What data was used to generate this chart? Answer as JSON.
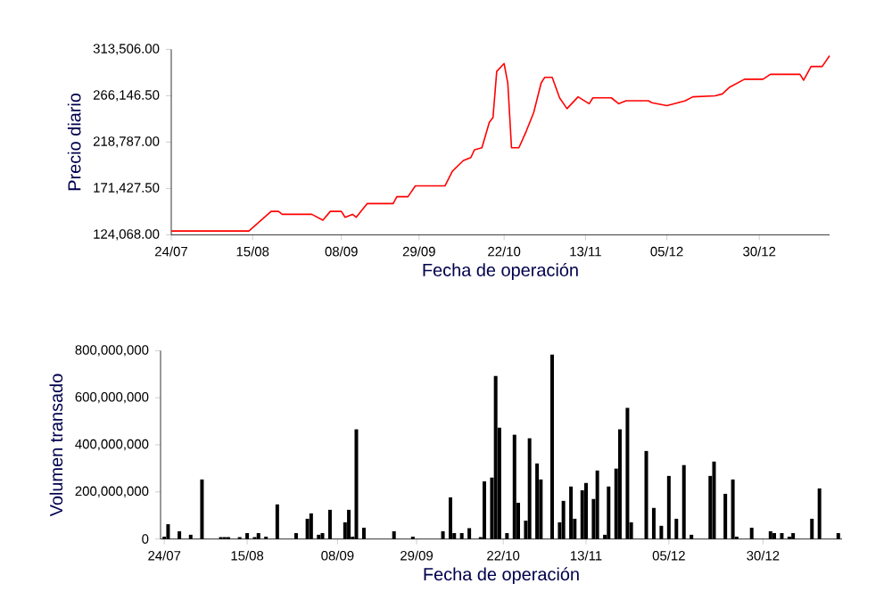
{
  "chart_data": [
    {
      "type": "line",
      "xlabel": "Fecha de operación",
      "ylabel": "Precio diario",
      "color": "#ff0000",
      "x": [
        "2007-07-24",
        "2007-08-14",
        "2007-08-20",
        "2007-08-22",
        "2007-08-23",
        "2007-08-31",
        "2007-09-03",
        "2007-09-05",
        "2007-09-08",
        "2007-09-09",
        "2007-09-11",
        "2007-09-12",
        "2007-09-15",
        "2007-09-22",
        "2007-09-23",
        "2007-09-26",
        "2007-09-28",
        "2007-10-06",
        "2007-10-08",
        "2007-10-11",
        "2007-10-13",
        "2007-10-14",
        "2007-10-16",
        "2007-10-18",
        "2007-10-19",
        "2007-10-20",
        "2007-10-22",
        "2007-10-23",
        "2007-10-24",
        "2007-10-26",
        "2007-10-28",
        "2007-10-30",
        "2007-11-01",
        "2007-11-02",
        "2007-11-04",
        "2007-11-06",
        "2007-11-08",
        "2007-11-11",
        "2007-11-14",
        "2007-11-15",
        "2007-11-20",
        "2007-11-22",
        "2007-11-24",
        "2007-11-30",
        "2007-12-01",
        "2007-12-05",
        "2007-12-08",
        "2007-12-10",
        "2007-12-12",
        "2007-12-18",
        "2007-12-20",
        "2007-12-22",
        "2007-12-26",
        "2007-12-31",
        "2008-01-02",
        "2008-01-10",
        "2008-01-11",
        "2008-01-13",
        "2008-01-16",
        "2008-01-18"
      ],
      "values": [
        128000,
        128000,
        148000,
        148000,
        145000,
        145000,
        139000,
        148000,
        148000,
        142000,
        145000,
        142000,
        156000,
        156000,
        163000,
        163000,
        174000,
        174000,
        189000,
        200000,
        203000,
        211000,
        213000,
        239000,
        244000,
        291000,
        299000,
        279000,
        213000,
        213000,
        230000,
        249000,
        279000,
        285000,
        285000,
        264000,
        253000,
        265000,
        258000,
        264000,
        264000,
        258000,
        261000,
        261000,
        259000,
        256000,
        259000,
        261000,
        265000,
        266000,
        268000,
        275000,
        283000,
        283000,
        288000,
        288000,
        282000,
        296000,
        296000,
        307000
      ],
      "xlim": [
        "2007-07-24",
        "2008-01-18"
      ],
      "xticks": [
        {
          "value": "2007-07-24",
          "label": "24/07"
        },
        {
          "value": "2007-08-15",
          "label": "15/08"
        },
        {
          "value": "2007-09-08",
          "label": "08/09"
        },
        {
          "value": "2007-09-29",
          "label": "29/09"
        },
        {
          "value": "2007-10-22",
          "label": "22/10"
        },
        {
          "value": "2007-11-13",
          "label": "13/11"
        },
        {
          "value": "2007-12-05",
          "label": "05/12"
        },
        {
          "value": "2007-12-30",
          "label": "30/12"
        }
      ],
      "ylim": [
        124068,
        313506
      ],
      "yticks": [
        {
          "value": 124068,
          "label": "124,068.00"
        },
        {
          "value": 171427.5,
          "label": "171,427.50"
        },
        {
          "value": 218787,
          "label": "218,787.00"
        },
        {
          "value": 266146.5,
          "label": "266,146.50"
        },
        {
          "value": 313506,
          "label": "313,506.00"
        }
      ]
    },
    {
      "type": "bar",
      "xlabel": "Fecha de operación",
      "ylabel": "Volumen transado",
      "color": "#000000",
      "x": [
        "2007-07-24",
        "2007-07-25",
        "2007-07-28",
        "2007-07-31",
        "2007-08-03",
        "2007-08-08",
        "2007-08-09",
        "2007-08-10",
        "2007-08-13",
        "2007-08-15",
        "2007-08-17",
        "2007-08-18",
        "2007-08-20",
        "2007-08-23",
        "2007-08-28",
        "2007-08-31",
        "2007-09-01",
        "2007-09-03",
        "2007-09-04",
        "2007-09-06",
        "2007-09-10",
        "2007-09-11",
        "2007-09-12",
        "2007-09-13",
        "2007-09-15",
        "2007-09-23",
        "2007-09-28",
        "2007-10-06",
        "2007-10-08",
        "2007-10-09",
        "2007-10-11",
        "2007-10-13",
        "2007-10-16",
        "2007-10-17",
        "2007-10-19",
        "2007-10-20",
        "2007-10-21",
        "2007-10-23",
        "2007-10-25",
        "2007-10-26",
        "2007-10-28",
        "2007-10-29",
        "2007-10-31",
        "2007-11-01",
        "2007-11-04",
        "2007-11-06",
        "2007-11-07",
        "2007-11-09",
        "2007-11-10",
        "2007-11-12",
        "2007-11-13",
        "2007-11-15",
        "2007-11-16",
        "2007-11-18",
        "2007-11-19",
        "2007-11-21",
        "2007-11-22",
        "2007-11-24",
        "2007-11-25",
        "2007-11-29",
        "2007-12-01",
        "2007-12-03",
        "2007-12-05",
        "2007-12-07",
        "2007-12-09",
        "2007-12-11",
        "2007-12-16",
        "2007-12-17",
        "2007-12-20",
        "2007-12-22",
        "2007-12-23",
        "2007-12-27",
        "2008-01-01",
        "2008-01-02",
        "2008-01-04",
        "2008-01-06",
        "2008-01-07",
        "2008-01-12",
        "2008-01-14",
        "2008-01-19"
      ],
      "values": [
        10000000,
        63000000,
        33000000,
        18000000,
        253000000,
        8000000,
        8000000,
        8000000,
        8000000,
        25000000,
        8000000,
        25000000,
        10000000,
        147000000,
        25000000,
        86000000,
        109000000,
        18000000,
        25000000,
        124000000,
        71000000,
        124000000,
        10000000,
        466000000,
        48000000,
        33000000,
        10000000,
        33000000,
        177000000,
        25000000,
        25000000,
        46000000,
        8000000,
        245000000,
        261000000,
        693000000,
        473000000,
        25000000,
        443000000,
        154000000,
        78000000,
        428000000,
        321000000,
        253000000,
        784000000,
        71000000,
        162000000,
        223000000,
        86000000,
        207000000,
        238000000,
        170000000,
        291000000,
        18000000,
        223000000,
        299000000,
        466000000,
        557000000,
        71000000,
        374000000,
        132000000,
        56000000,
        268000000,
        86000000,
        314000000,
        18000000,
        268000000,
        329000000,
        192000000,
        253000000,
        10000000,
        48000000,
        33000000,
        25000000,
        25000000,
        10000000,
        25000000,
        86000000,
        215000000,
        25000000
      ],
      "xlim": [
        "2007-07-23",
        "2008-01-20"
      ],
      "xticks": [
        {
          "value": "2007-07-24",
          "label": "24/07"
        },
        {
          "value": "2007-08-15",
          "label": "15/08"
        },
        {
          "value": "2007-09-08",
          "label": "08/09"
        },
        {
          "value": "2007-09-29",
          "label": "29/09"
        },
        {
          "value": "2007-10-22",
          "label": "22/10"
        },
        {
          "value": "2007-11-13",
          "label": "13/11"
        },
        {
          "value": "2007-12-05",
          "label": "05/12"
        },
        {
          "value": "2007-12-30",
          "label": "30/12"
        }
      ],
      "ylim": [
        0,
        800000000
      ],
      "yticks": [
        {
          "value": 0,
          "label": "0"
        },
        {
          "value": 200000000,
          "label": "200,000,000"
        },
        {
          "value": 400000000,
          "label": "400,000,000"
        },
        {
          "value": 600000000,
          "label": "600,000,000"
        },
        {
          "value": 800000000,
          "label": "800,000,000"
        }
      ]
    }
  ]
}
